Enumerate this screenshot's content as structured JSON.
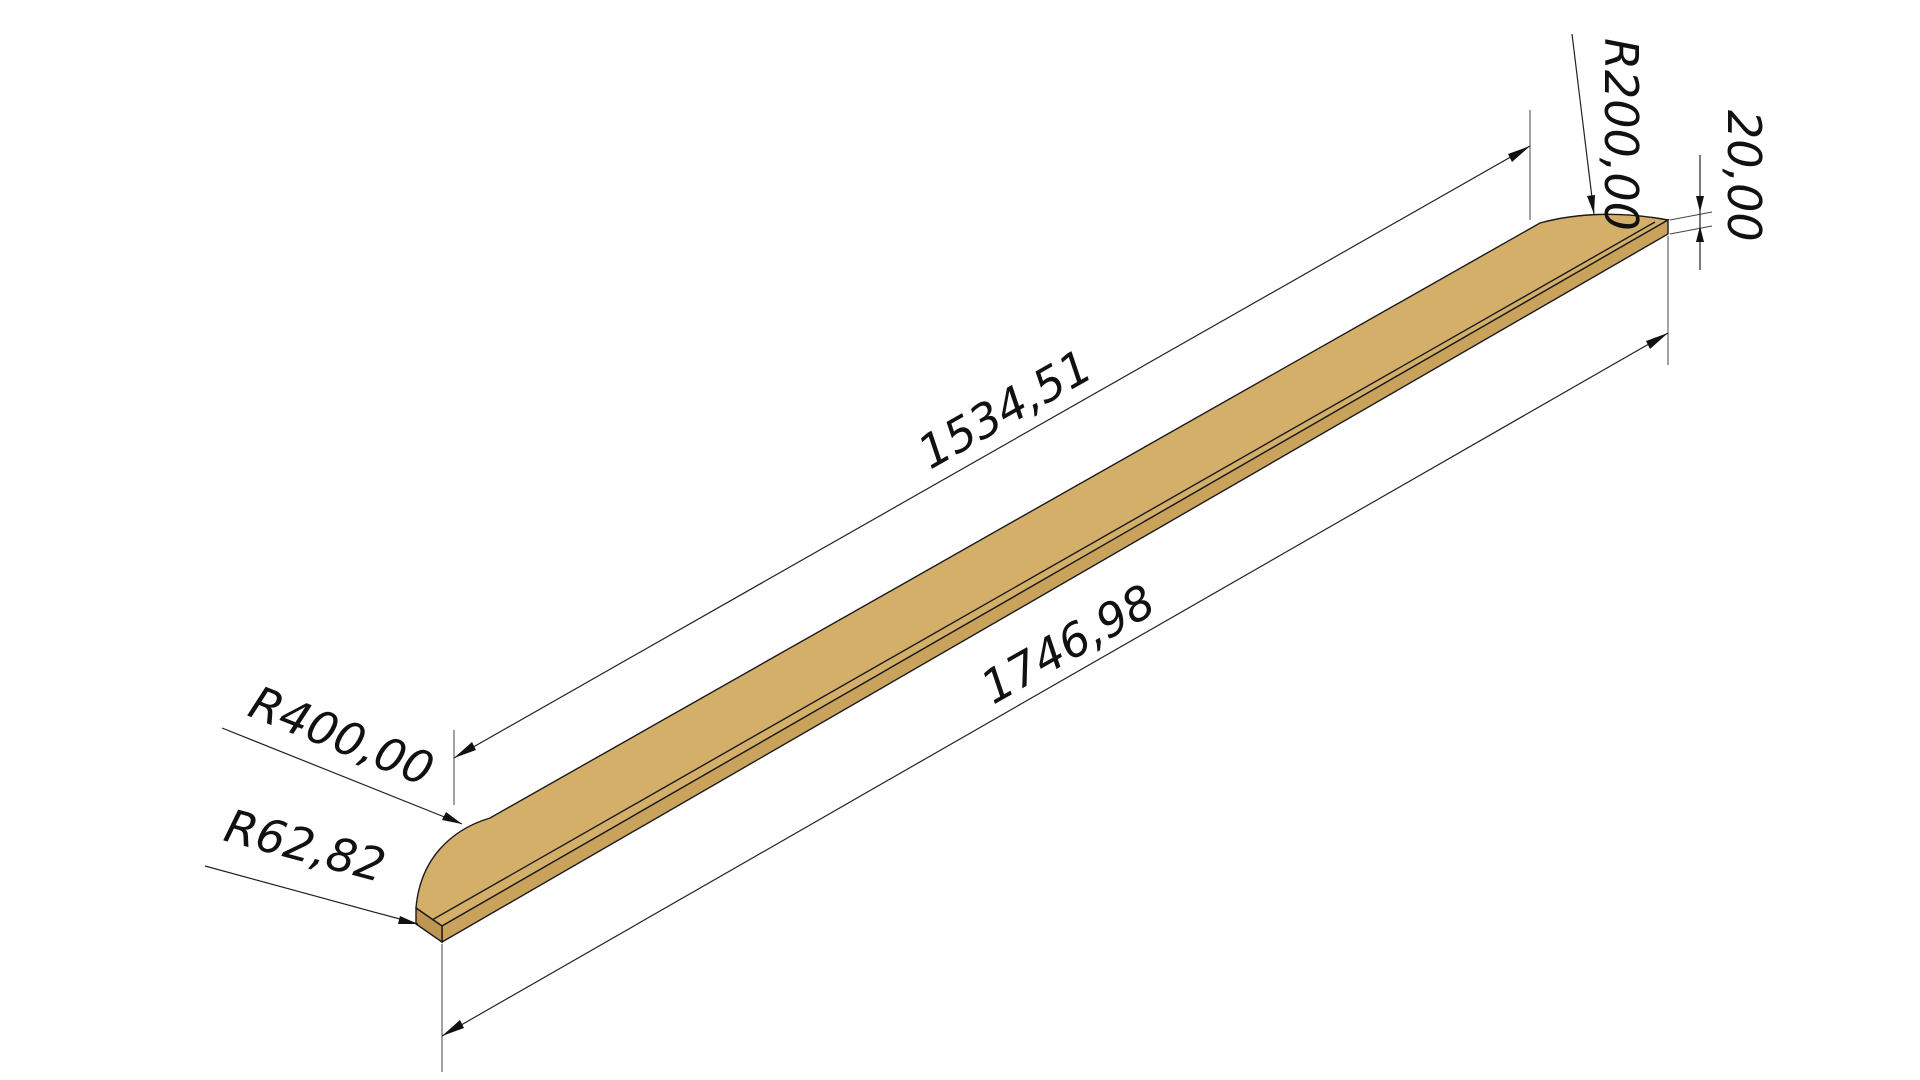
{
  "part": {
    "face_color": "#D4AF6A",
    "side_color": "#C9A25C",
    "end_color": "#BF9552",
    "edge_color": "#1B1B1B"
  },
  "dimensions": {
    "length_top": "1534,51",
    "length_bottom": "1746,98",
    "radius_large": "R400,00",
    "radius_small": "R62,82",
    "radius_end": "R200,00",
    "thickness": "20,00"
  }
}
